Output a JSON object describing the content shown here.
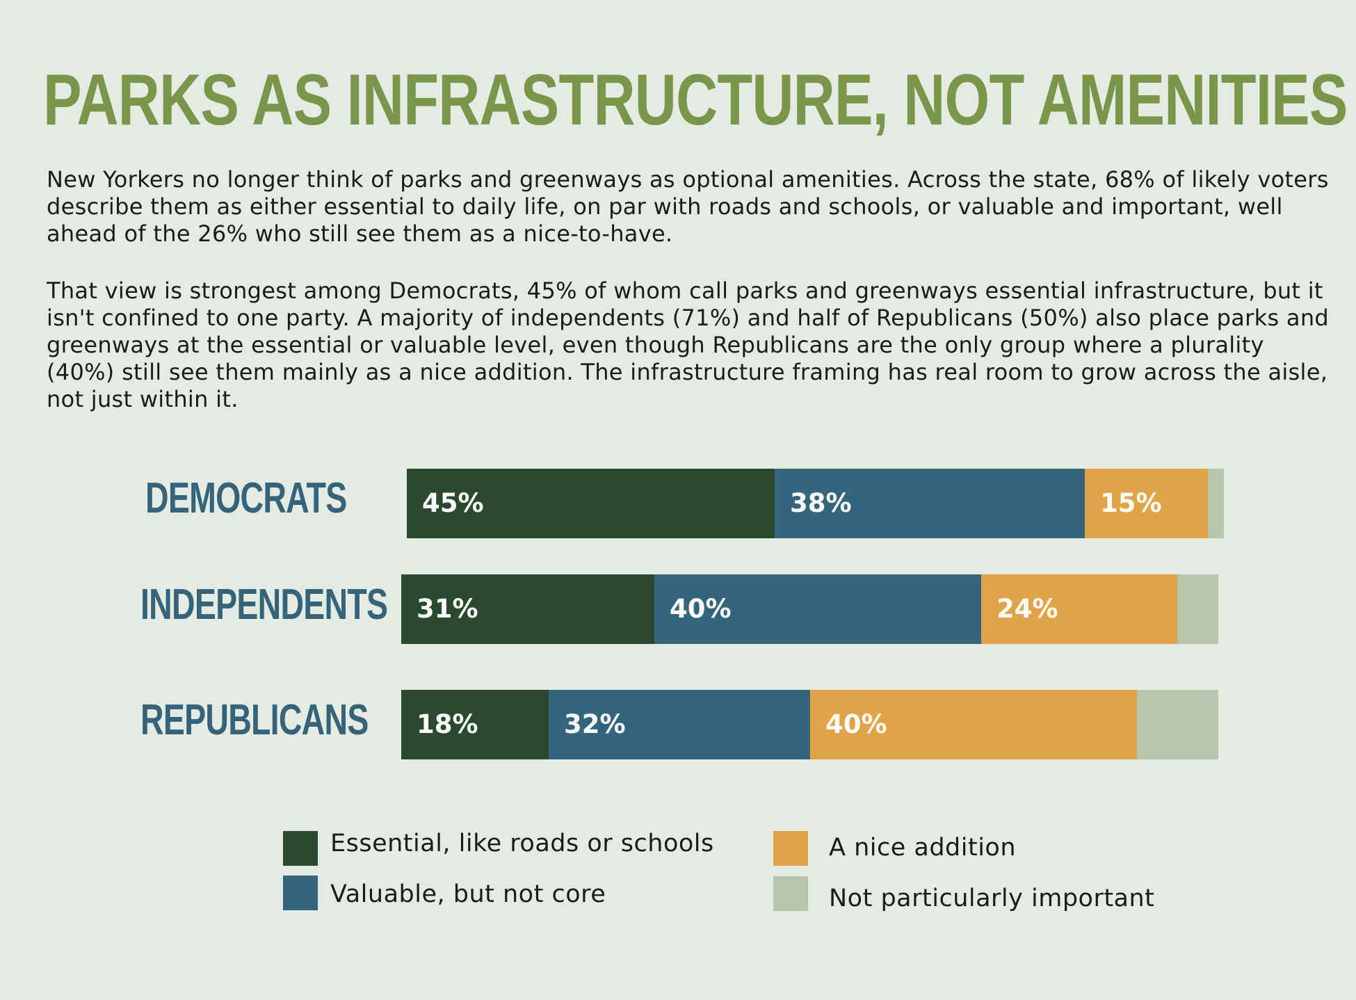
{
  "title": "PARKS AS INFRASTRUCTURE, NOT AMENITIES",
  "paragraphs": [
    "New Yorkers no longer think of parks and greenways as optional amenities. Across the state, 68% of likely voters describe them as either essential to daily life, on par with roads and schools, or valuable and important, well ahead of the 26% who still see them as a nice-to-have.",
    "That view is strongest among Democrats, 45% of whom call parks and greenways essential infrastructure, but it isn't confined to one party. A majority of independents (71%) and half of Republicans (50%) also place parks and greenways at the essential or valuable level, even though Republicans are the only group where a plurality (40%) still see them mainly as a nice addition. The infrastructure framing has real room to grow across the aisle, not just within it."
  ],
  "colors": {
    "background": "#e4ebe3",
    "title": "#7a964b",
    "row_label": "#34637a",
    "essential": "#2a4a2f",
    "valuable": "#33667c",
    "nice": "#e0a347",
    "not_important": "#b8c5ad"
  },
  "chart_data": {
    "type": "bar",
    "orientation": "horizontal",
    "stacked": true,
    "categories": [
      "DEMOCRATS",
      "INDEPENDENTS",
      "REPUBLICANS"
    ],
    "series": [
      {
        "name": "Essential, like roads or schools",
        "values": [
          45,
          31,
          18
        ],
        "labels": [
          "45%",
          "31%",
          "18%"
        ],
        "color": "#2a4a2f"
      },
      {
        "name": "Valuable, but not core",
        "values": [
          38,
          40,
          32
        ],
        "labels": [
          "38%",
          "40%",
          "32%"
        ],
        "color": "#33667c"
      },
      {
        "name": "A nice addition",
        "values": [
          15,
          24,
          40
        ],
        "labels": [
          "15%",
          "24%",
          "40%"
        ],
        "color": "#e0a347"
      },
      {
        "name": "Not particularly important",
        "values": [
          2,
          5,
          10
        ],
        "labels": [
          "",
          "",
          ""
        ],
        "color": "#b8c5ad"
      }
    ],
    "legend_position": "bottom",
    "grid": false
  },
  "legend": [
    {
      "label": "Essential, like roads or schools",
      "color": "#2a4a2f"
    },
    {
      "label": "Valuable, but not core",
      "color": "#33667c"
    },
    {
      "label": "A nice addition",
      "color": "#e0a347"
    },
    {
      "label": "Not particularly important",
      "color": "#b8c5ad"
    }
  ]
}
